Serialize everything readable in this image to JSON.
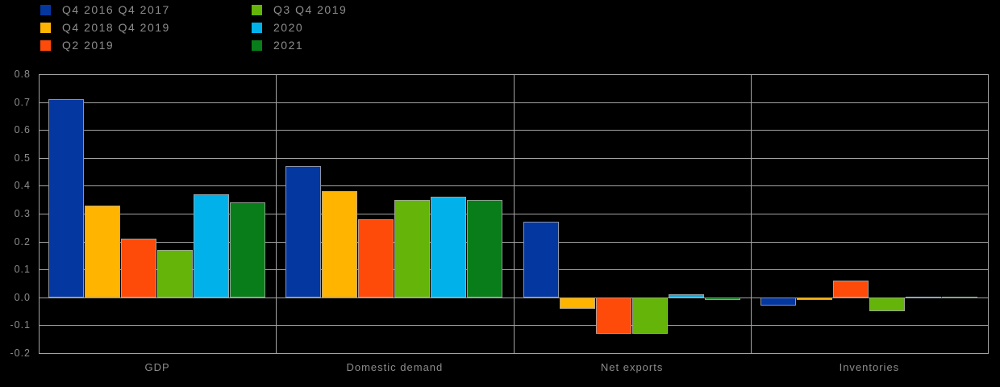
{
  "chart_data": {
    "type": "bar",
    "categories": [
      "GDP",
      "Domestic demand",
      "Net exports",
      "Inventories"
    ],
    "series": [
      {
        "name": "Q4 2016 Q4 2017",
        "color": "#0537A0",
        "values": [
          0.71,
          0.47,
          0.27,
          -0.03
        ]
      },
      {
        "name": "Q4 2018 Q4 2019",
        "color": "#FFB400",
        "values": [
          0.33,
          0.38,
          -0.04,
          -0.01
        ]
      },
      {
        "name": "Q2 2019",
        "color": "#FF4B0A",
        "values": [
          0.21,
          0.28,
          -0.13,
          0.06
        ]
      },
      {
        "name": "Q3 Q4 2019",
        "color": "#64B40A",
        "values": [
          0.17,
          0.35,
          -0.13,
          -0.05
        ]
      },
      {
        "name": "2020",
        "color": "#00B2E9",
        "values": [
          0.37,
          0.36,
          0.01,
          0.0
        ]
      },
      {
        "name": "2021",
        "color": "#087D19",
        "values": [
          0.34,
          0.35,
          -0.01,
          0.0
        ]
      }
    ],
    "y_axis": {
      "min": -0.2,
      "max": 0.8,
      "step": 0.1,
      "tick_labels": [
        "0.8",
        "0.7",
        "0.6",
        "0.5",
        "0.4",
        "0.3",
        "0.2",
        "0.1",
        "0.0",
        "-0.1",
        "-0.2"
      ]
    },
    "legend_position": "top-left",
    "grid": true,
    "panel_separators": true,
    "background_color": "#000000",
    "gridline_color": "#A3A3A3",
    "text_color": "#8C8C8C"
  }
}
